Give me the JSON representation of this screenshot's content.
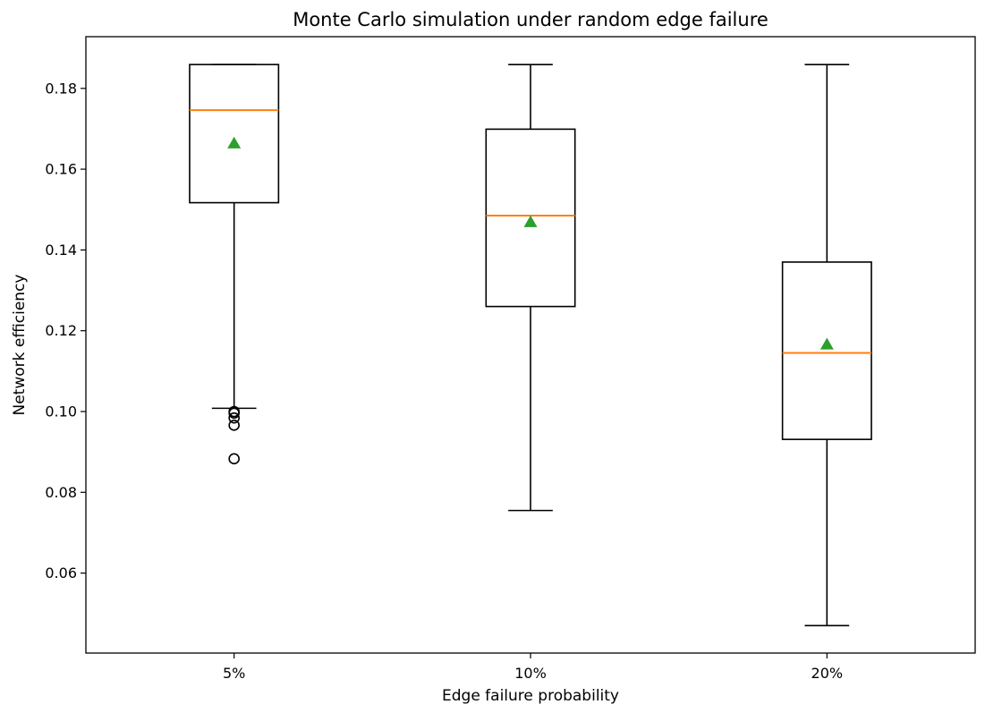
{
  "chart_data": {
    "type": "box",
    "title": "Monte Carlo simulation under random edge failure",
    "xlabel": "Edge failure probability",
    "ylabel": "Network efficiency",
    "categories": [
      "5%",
      "10%",
      "20%"
    ],
    "ylim": [
      0.0402,
      0.1928
    ],
    "yticks": [
      0.06,
      0.08,
      0.1,
      0.12,
      0.14,
      0.16,
      0.18
    ],
    "ytick_labels": [
      "0.06",
      "0.08",
      "0.10",
      "0.12",
      "0.14",
      "0.16",
      "0.18"
    ],
    "grid": false,
    "boxes": [
      {
        "category": "5%",
        "whisker_low": 0.1008,
        "q1": 0.1517,
        "median": 0.1746,
        "q3": 0.1859,
        "whisker_high": 0.1859,
        "mean": 0.1664,
        "outliers": [
          0.1,
          0.0996,
          0.0984,
          0.0966,
          0.0883
        ]
      },
      {
        "category": "10%",
        "whisker_low": 0.0755,
        "q1": 0.126,
        "median": 0.1485,
        "q3": 0.1699,
        "whisker_high": 0.1859,
        "mean": 0.1469,
        "outliers": []
      },
      {
        "category": "20%",
        "whisker_low": 0.047,
        "q1": 0.0931,
        "median": 0.1145,
        "q3": 0.137,
        "whisker_high": 0.1859,
        "mean": 0.1166,
        "outliers": []
      }
    ],
    "colors": {
      "box": "#000000",
      "median": "#ff7f0e",
      "mean": "#2ca02c",
      "outlier": "#000000"
    }
  }
}
